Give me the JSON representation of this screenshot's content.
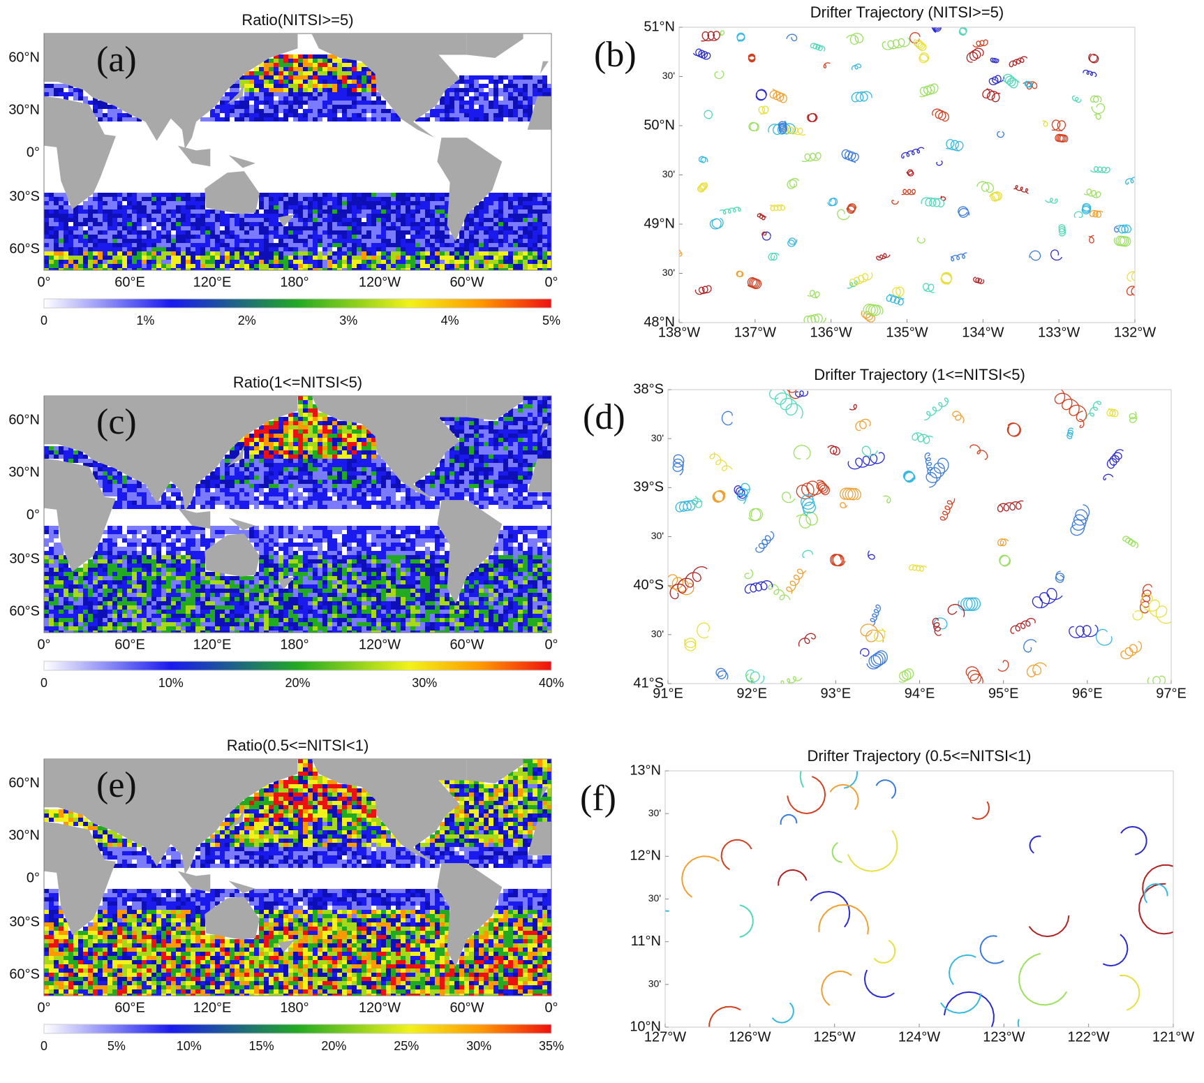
{
  "panels": [
    {
      "label": "(a)",
      "title": "Ratio(NITSI>=5)",
      "lat_labels": [
        "60°N",
        "30°N",
        "0°",
        "30°S",
        "60°S"
      ],
      "lon_labels": [
        "0°",
        "60°E",
        "120°E",
        "180°",
        "120°W",
        "60°W",
        "0°"
      ],
      "colorbar_ticks": [
        "0",
        "1%",
        "2%",
        "3%",
        "4%",
        "5%"
      ]
    },
    {
      "label": "(b)",
      "title": "Drifter Trajectory (NITSI>=5)",
      "y_labels": [
        "51°N",
        "30'",
        "50°N",
        "30'",
        "49°N",
        "30'",
        "48°N"
      ],
      "x_labels": [
        "138°W",
        "137°W",
        "136°W",
        "135°W",
        "134°W",
        "133°W",
        "132°W"
      ]
    },
    {
      "label": "(c)",
      "title": "Ratio(1<=NITSI<5)",
      "lat_labels": [
        "60°N",
        "30°N",
        "0°",
        "30°S",
        "60°S"
      ],
      "lon_labels": [
        "0°",
        "60°E",
        "120°E",
        "180°",
        "120°W",
        "60°W",
        "0°"
      ],
      "colorbar_ticks": [
        "0",
        "10%",
        "20%",
        "30%",
        "40%"
      ]
    },
    {
      "label": "(d)",
      "title": "Drifter Trajectory (1<=NITSI<5)",
      "y_labels": [
        "38°S",
        "30'",
        "39°S",
        "30'",
        "40°S",
        "30'",
        "41°S"
      ],
      "x_labels": [
        "91°E",
        "92°E",
        "93°E",
        "94°E",
        "95°E",
        "96°E",
        "97°E"
      ]
    },
    {
      "label": "(e)",
      "title": "Ratio(0.5<=NITSI<1)",
      "lat_labels": [
        "60°N",
        "30°N",
        "0°",
        "30°S",
        "60°S"
      ],
      "lon_labels": [
        "0°",
        "60°E",
        "120°E",
        "180°",
        "120°W",
        "60°W",
        "0°"
      ],
      "colorbar_ticks": [
        "0",
        "5%",
        "10%",
        "15%",
        "20%",
        "25%",
        "30%",
        "35%"
      ]
    },
    {
      "label": "(f)",
      "title": "Drifter Trajectory (0.5<=NITSI<1)",
      "y_labels": [
        "13°N",
        "30'",
        "12°N",
        "30'",
        "11°N",
        "30'",
        "10°N"
      ],
      "x_labels": [
        "127°W",
        "126°W",
        "125°W",
        "124°W",
        "123°W",
        "122°W",
        "121°W"
      ]
    }
  ]
}
